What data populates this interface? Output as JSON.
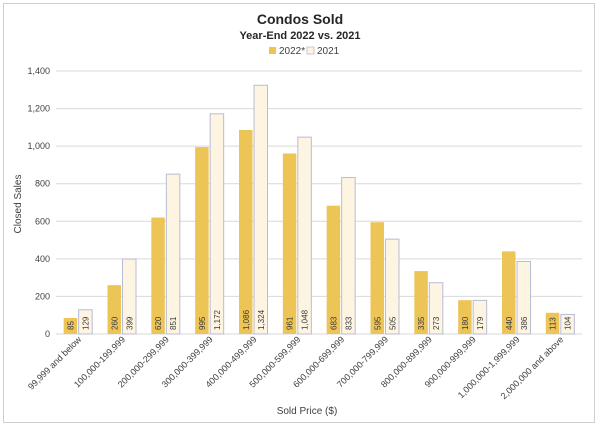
{
  "chart_data": {
    "type": "bar",
    "title": "Condos Sold",
    "subtitle": "Year-End 2022 vs. 2021",
    "xlabel": "Sold Price ($)",
    "ylabel": "Closed Sales",
    "ylim": [
      0,
      1400
    ],
    "yticks": [
      0,
      200,
      400,
      600,
      800,
      1000,
      1200,
      1400
    ],
    "ytick_labels": [
      "0",
      "200",
      "400",
      "600",
      "800",
      "1,000",
      "1,200",
      "1,400"
    ],
    "grid": true,
    "legend_position": "top",
    "categories": [
      "99,999 and below",
      "100,000-199,999",
      "200,000-299,999",
      "300,000-399,999",
      "400,000-499,999",
      "500,000-599,999",
      "600,000-699,999",
      "700,000-799,999",
      "800,000-899,999",
      "900,000-999,999",
      "1,000,000-1,999,999",
      "2,000,000 and above"
    ],
    "series": [
      {
        "name": "2022*",
        "color": "#EDC456",
        "values": [
          85,
          260,
          620,
          995,
          1086,
          961,
          683,
          595,
          335,
          180,
          440,
          113
        ],
        "labels": [
          "85",
          "260",
          "620",
          "995",
          "1,086",
          "961",
          "683",
          "595",
          "335",
          "180",
          "440",
          "113"
        ]
      },
      {
        "name": "2021",
        "color": "#FDF5E1",
        "values": [
          129,
          399,
          851,
          1172,
          1324,
          1048,
          833,
          505,
          273,
          179,
          386,
          104
        ],
        "labels": [
          "129",
          "399",
          "851",
          "1,172",
          "1,324",
          "1,048",
          "833",
          "505",
          "273",
          "179",
          "386",
          "104"
        ]
      }
    ],
    "bar_outline_2021": "#B8BCD6"
  }
}
